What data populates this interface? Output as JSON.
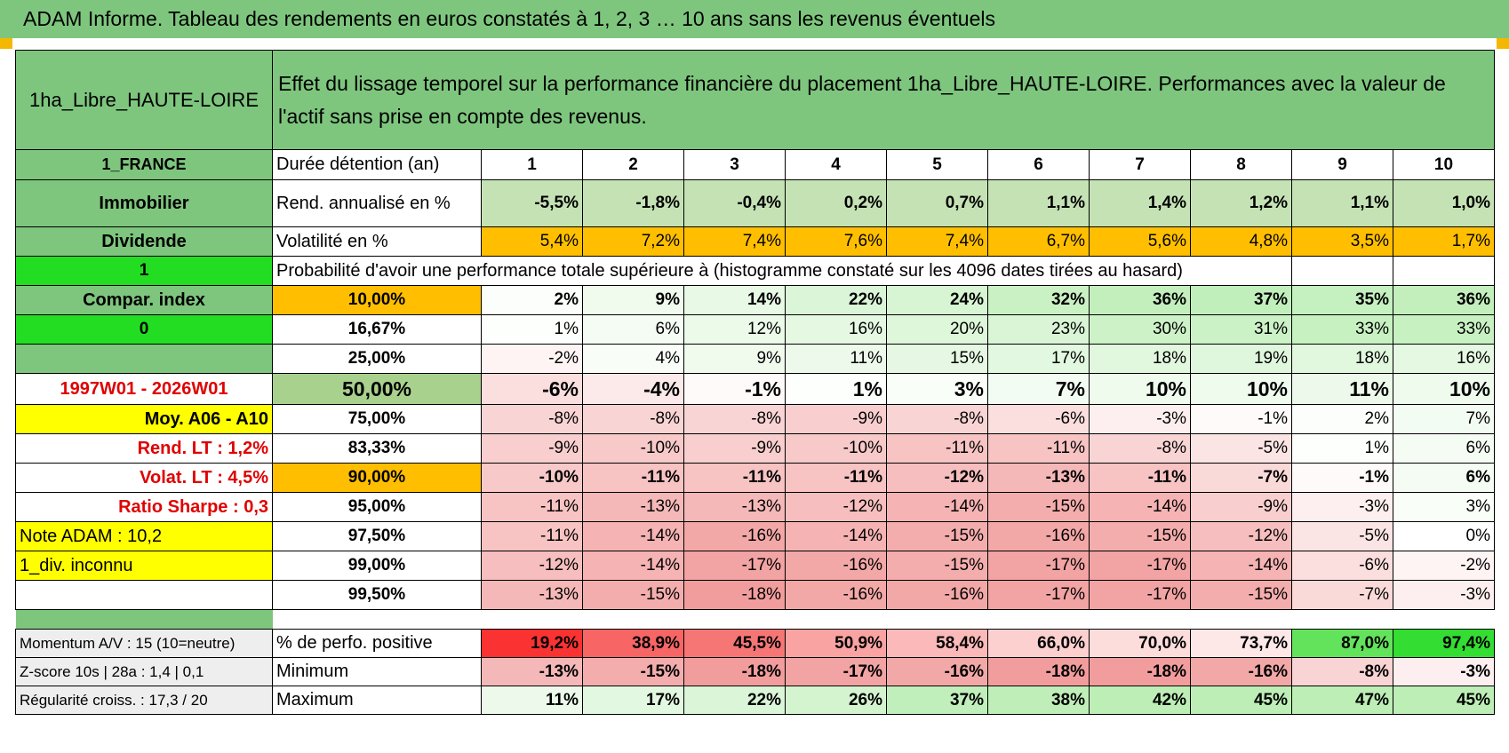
{
  "title": "ADAM Informe. Tableau des rendements en euros constatés à 1, 2, 3 … 10 ans sans les revenus éventuels",
  "asset_name": "1ha_Libre_HAUTE-LOIRE",
  "description": "Effet du lissage temporel sur la performance financière du placement 1ha_Libre_HAUTE-LOIRE. Performances avec la valeur de l'actif sans prise en compte des revenus.",
  "side": {
    "country": "1_FRANCE",
    "category": "Immobilier",
    "type": "Dividende",
    "flag1": "1",
    "compar": "Compar. index",
    "flag0": "0",
    "period": "1997W01 - 2026W01",
    "moy": "Moy. A06 - A10",
    "rend_lt": "Rend. LT :    1,2%",
    "volat_lt": "Volat. LT :    4,5%",
    "sharpe": "Ratio Sharpe :     0,3",
    "note": "Note ADAM : 10,2",
    "div": "1_div. inconnu"
  },
  "headers": {
    "duration": "Durée détention (an)",
    "years": [
      "1",
      "2",
      "3",
      "4",
      "5",
      "6",
      "7",
      "8",
      "9",
      "10"
    ]
  },
  "rend": {
    "label": "Rend. annualisé en %",
    "values": [
      "-5,5%",
      "-1,8%",
      "-0,4%",
      "0,2%",
      "0,7%",
      "1,1%",
      "1,4%",
      "1,2%",
      "1,1%",
      "1,0%"
    ]
  },
  "volat": {
    "label": "Volatilité en %",
    "values": [
      "5,4%",
      "7,2%",
      "7,4%",
      "7,6%",
      "7,4%",
      "6,7%",
      "5,6%",
      "4,8%",
      "3,5%",
      "1,7%"
    ]
  },
  "prob_title": "Probabilité d'avoir une performance totale supérieure à (histogramme constaté sur les 4096 dates tirées au hasard)",
  "percentiles": [
    {
      "p": "10,00%",
      "v": [
        "2%",
        "9%",
        "14%",
        "22%",
        "24%",
        "32%",
        "36%",
        "37%",
        "35%",
        "36%"
      ]
    },
    {
      "p": "16,67%",
      "v": [
        "1%",
        "6%",
        "12%",
        "16%",
        "20%",
        "23%",
        "30%",
        "31%",
        "33%",
        "33%"
      ]
    },
    {
      "p": "25,00%",
      "v": [
        "-2%",
        "4%",
        "9%",
        "11%",
        "15%",
        "17%",
        "18%",
        "19%",
        "18%",
        "16%"
      ]
    },
    {
      "p": "50,00%",
      "v": [
        "-6%",
        "-4%",
        "-1%",
        "1%",
        "3%",
        "7%",
        "10%",
        "10%",
        "11%",
        "10%"
      ]
    },
    {
      "p": "75,00%",
      "v": [
        "-8%",
        "-8%",
        "-8%",
        "-9%",
        "-8%",
        "-6%",
        "-3%",
        "-1%",
        "2%",
        "7%"
      ]
    },
    {
      "p": "83,33%",
      "v": [
        "-9%",
        "-10%",
        "-9%",
        "-10%",
        "-11%",
        "-11%",
        "-8%",
        "-5%",
        "1%",
        "6%"
      ]
    },
    {
      "p": "90,00%",
      "v": [
        "-10%",
        "-11%",
        "-11%",
        "-11%",
        "-12%",
        "-13%",
        "-11%",
        "-7%",
        "-1%",
        "6%"
      ]
    },
    {
      "p": "95,00%",
      "v": [
        "-11%",
        "-13%",
        "-13%",
        "-12%",
        "-14%",
        "-15%",
        "-14%",
        "-9%",
        "-3%",
        "3%"
      ]
    },
    {
      "p": "97,50%",
      "v": [
        "-11%",
        "-14%",
        "-16%",
        "-14%",
        "-15%",
        "-16%",
        "-15%",
        "-12%",
        "-5%",
        "0%"
      ]
    },
    {
      "p": "99,00%",
      "v": [
        "-12%",
        "-14%",
        "-17%",
        "-16%",
        "-15%",
        "-17%",
        "-17%",
        "-14%",
        "-6%",
        "-2%"
      ]
    },
    {
      "p": "99,50%",
      "v": [
        "-13%",
        "-15%",
        "-18%",
        "-16%",
        "-16%",
        "-17%",
        "-17%",
        "-15%",
        "-7%",
        "-3%"
      ]
    }
  ],
  "bottom": [
    {
      "side": "Momentum A/V : 15 (10=neutre)",
      "label": "% de perfo. positive",
      "v": [
        "19,2%",
        "38,9%",
        "45,5%",
        "50,9%",
        "58,4%",
        "66,0%",
        "70,0%",
        "73,7%",
        "87,0%",
        "97,4%"
      ]
    },
    {
      "side": "Z-score 10s | 28a : 1,4 | 0,1",
      "label": "Minimum",
      "v": [
        "-13%",
        "-15%",
        "-18%",
        "-17%",
        "-16%",
        "-18%",
        "-18%",
        "-16%",
        "-8%",
        "-3%"
      ]
    },
    {
      "side": "Régularité croiss. : 17,3 / 20",
      "label": "Maximum",
      "v": [
        "11%",
        "17%",
        "22%",
        "26%",
        "37%",
        "38%",
        "42%",
        "45%",
        "47%",
        "45%"
      ]
    }
  ],
  "colors": {
    "header_green": "#7ec67e",
    "bright_green": "#22dd22",
    "yellow": "#ffff00",
    "orange": "#ffbf00",
    "label_red": "#e00000"
  }
}
